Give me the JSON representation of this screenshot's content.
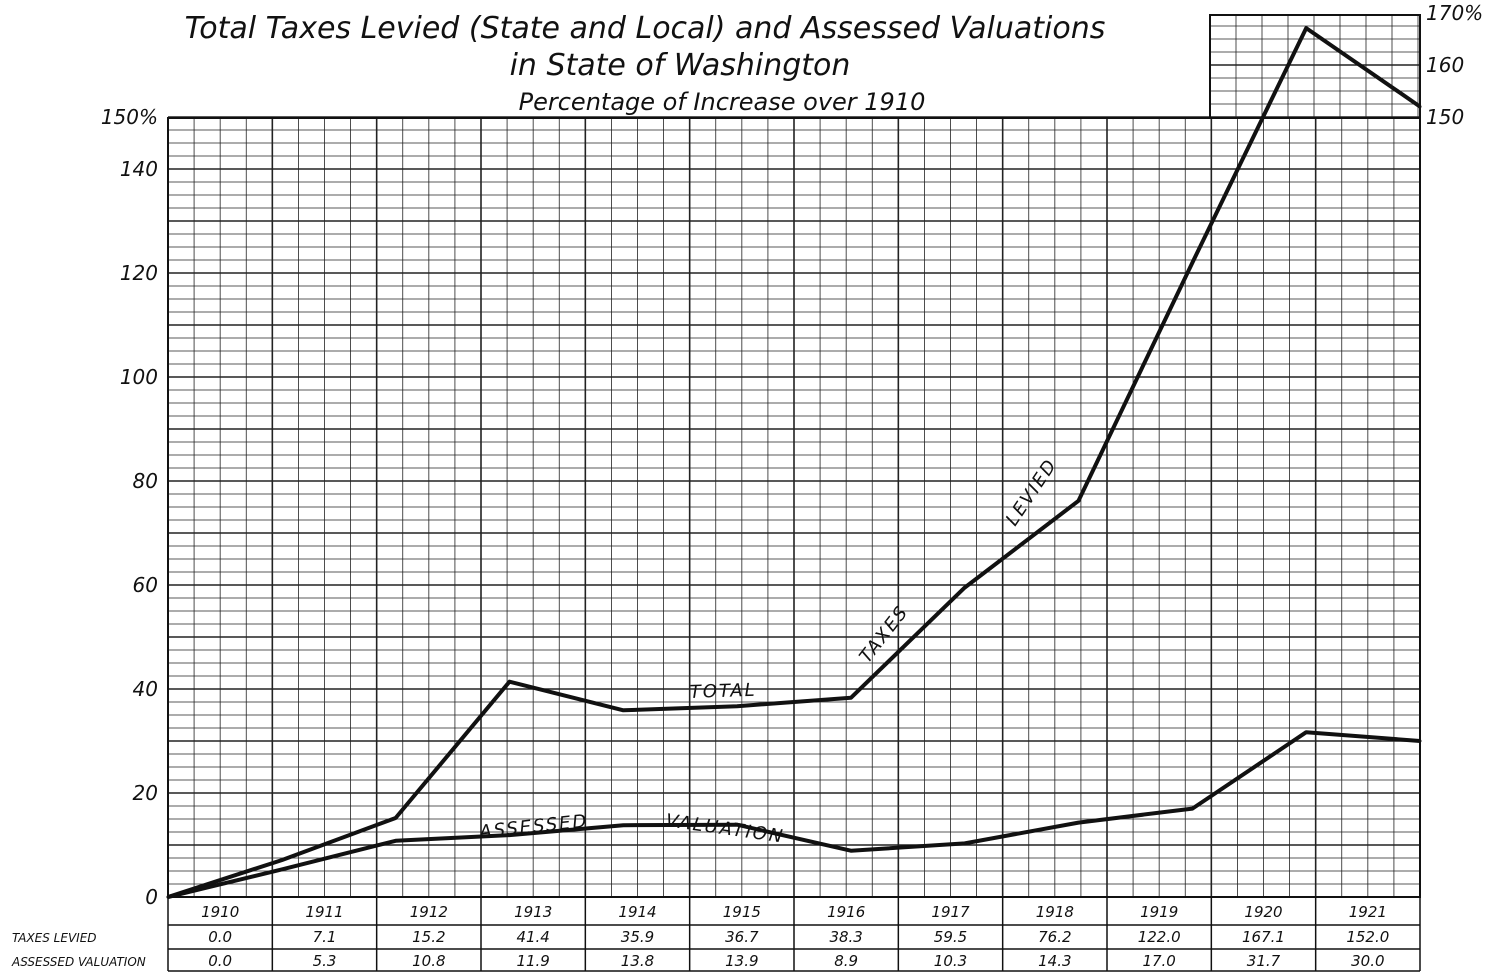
{
  "chart_data": {
    "type": "line",
    "title_line1": "Total Taxes Levied (State and Local) and Assessed Valuations",
    "title_line2": "in State of Washington",
    "subtitle": "Percentage of Increase over 1910",
    "categories": [
      "1910",
      "1911",
      "1912",
      "1913",
      "1914",
      "1915",
      "1916",
      "1917",
      "1918",
      "1919",
      "1920",
      "1921"
    ],
    "series": [
      {
        "name": "TAXES LEVIED",
        "values": [
          0.0,
          7.1,
          15.2,
          41.4,
          35.9,
          36.7,
          38.3,
          59.5,
          76.2,
          122.0,
          167.1,
          152.0
        ],
        "value_labels": [
          "0.0",
          "7.1",
          "15.2",
          "41.4",
          "35.9",
          "36.7",
          "38.3",
          "59.5",
          "76.2",
          "122.0",
          "167.1",
          "152.0"
        ]
      },
      {
        "name": "ASSESSED VALUATION",
        "values": [
          0.0,
          5.3,
          10.8,
          11.9,
          13.8,
          13.9,
          8.9,
          10.3,
          14.3,
          17.0,
          31.7,
          30.0
        ],
        "value_labels": [
          "0.0",
          "5.3",
          "10.8",
          "11.9",
          "13.8",
          "13.9",
          "8.9",
          "10.3",
          "14.3",
          "17.0",
          "31.7",
          "30.0"
        ]
      }
    ],
    "curve_labels": [
      "TOTAL",
      "TAXES",
      "LEVIED",
      "ASSESSED",
      "VALUATION"
    ],
    "ylim": [
      0,
      170
    ],
    "left_ytick_labels": [
      {
        "value": 0,
        "label": "0"
      },
      {
        "value": 20,
        "label": "20"
      },
      {
        "value": 40,
        "label": "40"
      },
      {
        "value": 60,
        "label": "60"
      },
      {
        "value": 80,
        "label": "80"
      },
      {
        "value": 100,
        "label": "100"
      },
      {
        "value": 120,
        "label": "120"
      },
      {
        "value": 140,
        "label": "140"
      },
      {
        "value": 150,
        "label": "150%"
      }
    ],
    "right_ytick_labels": [
      {
        "value": 150,
        "label": "150"
      },
      {
        "value": 160,
        "label": "160"
      },
      {
        "value": 170,
        "label": "170%"
      }
    ],
    "grid": true,
    "colors": {
      "line": "#111111",
      "grid": "#222222",
      "background": "#ffffff"
    }
  }
}
